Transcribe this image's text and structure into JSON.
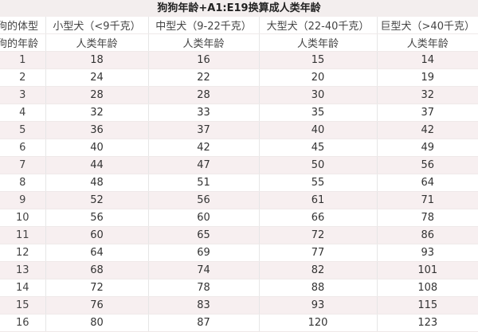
{
  "title": "狗狗年龄+A1:E19换算成人类年龄",
  "header_row1": [
    "狗的体型",
    "小型犬（<9千克）",
    "中型犬（9-22千克）",
    "大型犬（22-40千克）",
    "巨型犬（>40千克）"
  ],
  "header_row2": [
    "狗的年龄",
    "人类年龄",
    "人类年龄",
    "人类年龄",
    "人类年龄"
  ],
  "rows": [
    [
      "1",
      "18",
      "16",
      "15",
      "14"
    ],
    [
      "2",
      "24",
      "22",
      "20",
      "19"
    ],
    [
      "3",
      "28",
      "28",
      "30",
      "32"
    ],
    [
      "4",
      "32",
      "33",
      "35",
      "37"
    ],
    [
      "5",
      "36",
      "37",
      "40",
      "42"
    ],
    [
      "6",
      "40",
      "42",
      "45",
      "49"
    ],
    [
      "7",
      "44",
      "47",
      "50",
      "56"
    ],
    [
      "8",
      "48",
      "51",
      "55",
      "64"
    ],
    [
      "9",
      "52",
      "56",
      "61",
      "71"
    ],
    [
      "10",
      "56",
      "60",
      "66",
      "78"
    ],
    [
      "11",
      "60",
      "65",
      "72",
      "86"
    ],
    [
      "12",
      "64",
      "69",
      "77",
      "93"
    ],
    [
      "13",
      "68",
      "74",
      "82",
      "101"
    ],
    [
      "14",
      "72",
      "78",
      "88",
      "108"
    ],
    [
      "15",
      "76",
      "83",
      "93",
      "115"
    ],
    [
      "16",
      "80",
      "87",
      "120",
      "123"
    ]
  ]
}
